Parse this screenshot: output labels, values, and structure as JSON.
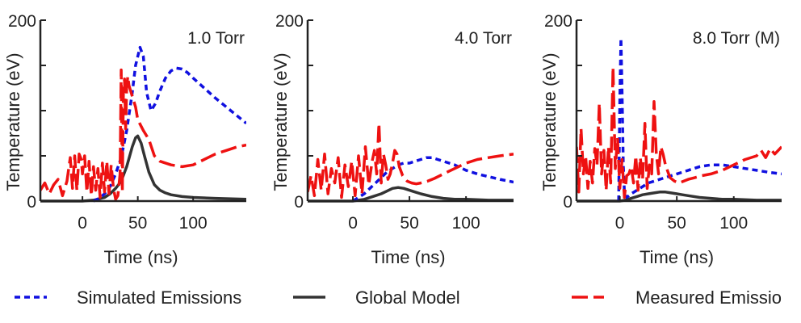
{
  "chart_data": [
    {
      "type": "line",
      "title": "1.0 Torr",
      "xlabel": "Time (ns)",
      "ylabel": "Temperature (eV)",
      "xlim": [
        -38,
        148
      ],
      "ylim": [
        0,
        200
      ],
      "xticks": [
        0,
        50,
        100
      ],
      "yticks": [
        0,
        200
      ],
      "grid": false,
      "series": [
        {
          "name": "Simulated Emissions",
          "x": [
            10,
            15,
            20,
            25,
            30,
            35,
            40,
            45,
            48,
            52,
            55,
            58,
            62,
            66,
            70,
            75,
            80,
            85,
            90,
            95,
            100,
            110,
            120,
            130,
            140,
            148
          ],
          "y": [
            0,
            3,
            8,
            16,
            30,
            48,
            78,
            120,
            150,
            170,
            160,
            120,
            100,
            108,
            122,
            136,
            144,
            147,
            146,
            142,
            136,
            125,
            114,
            104,
            94,
            86
          ]
        },
        {
          "name": "Global Model",
          "x": [
            -38,
            0,
            10,
            20,
            25,
            30,
            35,
            40,
            45,
            48,
            50,
            53,
            56,
            60,
            65,
            70,
            75,
            80,
            90,
            100,
            120,
            148
          ],
          "y": [
            0,
            0,
            1,
            4,
            8,
            14,
            22,
            38,
            60,
            70,
            72,
            64,
            50,
            32,
            18,
            12,
            9,
            7,
            5,
            4,
            3,
            2
          ]
        },
        {
          "name": "Measured Emissions",
          "x": [
            -38,
            -34,
            -30,
            -26,
            -22,
            -18,
            -14,
            -11,
            -9,
            -7,
            -5,
            -3,
            -1,
            0,
            2,
            4,
            6,
            8,
            10,
            12,
            14,
            16,
            18,
            20,
            22,
            24,
            26,
            28,
            30,
            32,
            34,
            35,
            36,
            37,
            38,
            39,
            40,
            41,
            42,
            44,
            46,
            48,
            50,
            55,
            60,
            65,
            70,
            80,
            90,
            100,
            110,
            120,
            130,
            140,
            148
          ],
          "y": [
            12,
            20,
            8,
            18,
            24,
            6,
            22,
            48,
            14,
            50,
            12,
            52,
            46,
            30,
            50,
            10,
            44,
            6,
            38,
            12,
            36,
            4,
            42,
            10,
            44,
            8,
            40,
            14,
            2,
            6,
            30,
            145,
            10,
            120,
            135,
            80,
            126,
            138,
            128,
            120,
            112,
            104,
            90,
            78,
            68,
            50,
            44,
            40,
            38,
            40,
            46,
            52,
            56,
            60,
            62
          ]
        }
      ]
    },
    {
      "type": "line",
      "title": "4.0 Torr",
      "xlabel": "Time (ns)",
      "ylabel": "Temperature (eV)",
      "xlim": [
        -40,
        142
      ],
      "ylim": [
        0,
        200
      ],
      "xticks": [
        0,
        50,
        100
      ],
      "yticks": [
        0,
        200
      ],
      "grid": false,
      "series": [
        {
          "name": "Simulated Emissions",
          "x": [
            0,
            5,
            10,
            15,
            20,
            25,
            30,
            35,
            40,
            45,
            50,
            55,
            60,
            65,
            70,
            75,
            80,
            90,
            100,
            110,
            120,
            130,
            142
          ],
          "y": [
            0,
            4,
            8,
            14,
            20,
            26,
            32,
            36,
            40,
            42,
            42,
            44,
            46,
            48,
            48,
            46,
            44,
            40,
            34,
            30,
            27,
            24,
            21
          ]
        },
        {
          "name": "Global Model",
          "x": [
            -40,
            0,
            10,
            20,
            25,
            30,
            35,
            40,
            45,
            50,
            55,
            60,
            70,
            80,
            90,
            100,
            120,
            142
          ],
          "y": [
            0,
            0,
            2,
            6,
            8,
            11,
            14,
            15,
            14,
            12,
            10,
            8,
            5,
            3,
            2,
            2,
            1,
            1
          ]
        },
        {
          "name": "Measured Emissions",
          "x": [
            -40,
            -37,
            -34,
            -31,
            -28,
            -25,
            -22,
            -19,
            -16,
            -13,
            -10,
            -7,
            -4,
            -1,
            2,
            5,
            8,
            11,
            14,
            17,
            19,
            21,
            23,
            25,
            27,
            29,
            31,
            33,
            35,
            37,
            39,
            41,
            44,
            48,
            52,
            56,
            60,
            66,
            72,
            80,
            90,
            100,
            110,
            120,
            130,
            142
          ],
          "y": [
            10,
            28,
            6,
            46,
            12,
            52,
            8,
            36,
            20,
            48,
            4,
            40,
            16,
            44,
            6,
            50,
            8,
            60,
            18,
            44,
            56,
            30,
            86,
            20,
            52,
            40,
            24,
            30,
            42,
            56,
            52,
            38,
            28,
            22,
            20,
            19,
            20,
            22,
            25,
            30,
            36,
            42,
            46,
            48,
            50,
            52
          ]
        }
      ]
    },
    {
      "type": "line",
      "title": "8.0 Torr (M)",
      "xlabel": "Time (ns)",
      "ylabel": "Temperature (eV)",
      "xlim": [
        -38,
        142
      ],
      "ylim": [
        0,
        200
      ],
      "xticks": [
        0,
        50,
        100
      ],
      "yticks": [
        0,
        200
      ],
      "grid": false,
      "series": [
        {
          "name": "Simulated Emissions",
          "x": [
            -1,
            0,
            1,
            2,
            3,
            4,
            5,
            6,
            8,
            10,
            15,
            20,
            25,
            30,
            35,
            40,
            45,
            50,
            55,
            60,
            70,
            80,
            90,
            100,
            110,
            120,
            130,
            142
          ],
          "y": [
            0,
            110,
            180,
            120,
            40,
            10,
            6,
            4,
            6,
            8,
            12,
            16,
            20,
            22,
            24,
            26,
            28,
            30,
            32,
            34,
            38,
            40,
            40,
            38,
            36,
            34,
            32,
            30
          ]
        },
        {
          "name": "Global Model",
          "x": [
            -38,
            0,
            5,
            10,
            15,
            20,
            25,
            30,
            35,
            40,
            45,
            50,
            55,
            60,
            70,
            80,
            90,
            100,
            120,
            142
          ],
          "y": [
            0,
            0,
            1,
            3,
            5,
            7,
            8,
            9,
            10,
            10,
            9,
            8,
            7,
            6,
            4,
            3,
            2,
            2,
            1,
            1
          ]
        },
        {
          "name": "Measured Emissions",
          "x": [
            -38,
            -36,
            -34,
            -32,
            -30,
            -28,
            -26,
            -24,
            -22,
            -20,
            -18,
            -16,
            -14,
            -12,
            -10,
            -8,
            -6,
            -4,
            -2,
            0,
            2,
            4,
            6,
            8,
            10,
            12,
            14,
            16,
            18,
            20,
            22,
            24,
            26,
            28,
            30,
            32,
            34,
            36,
            38,
            40,
            44,
            48,
            52,
            56,
            60,
            66,
            72,
            80,
            90,
            100,
            110,
            120,
            124,
            128,
            132,
            136,
            142
          ],
          "y": [
            60,
            10,
            80,
            30,
            50,
            14,
            44,
            20,
            58,
            40,
            108,
            30,
            56,
            12,
            60,
            20,
            148,
            36,
            70,
            14,
            46,
            4,
            28,
            30,
            38,
            20,
            50,
            12,
            48,
            24,
            86,
            14,
            40,
            30,
            110,
            52,
            30,
            60,
            52,
            40,
            26,
            22,
            20,
            22,
            24,
            26,
            28,
            30,
            34,
            40,
            46,
            50,
            56,
            48,
            58,
            52,
            60
          ]
        }
      ]
    }
  ],
  "legend": {
    "items": [
      {
        "label": "Simulated Emissions",
        "color": "#1010e0",
        "style": "dotted"
      },
      {
        "label": "Global Model",
        "color": "#333333",
        "style": "solid"
      },
      {
        "label": "Measured Emissio",
        "color": "#ee1111",
        "style": "dashed"
      }
    ]
  },
  "colors": {
    "simulated": "#1010e0",
    "global": "#333333",
    "measured": "#ee1111",
    "axis": "#222222"
  }
}
